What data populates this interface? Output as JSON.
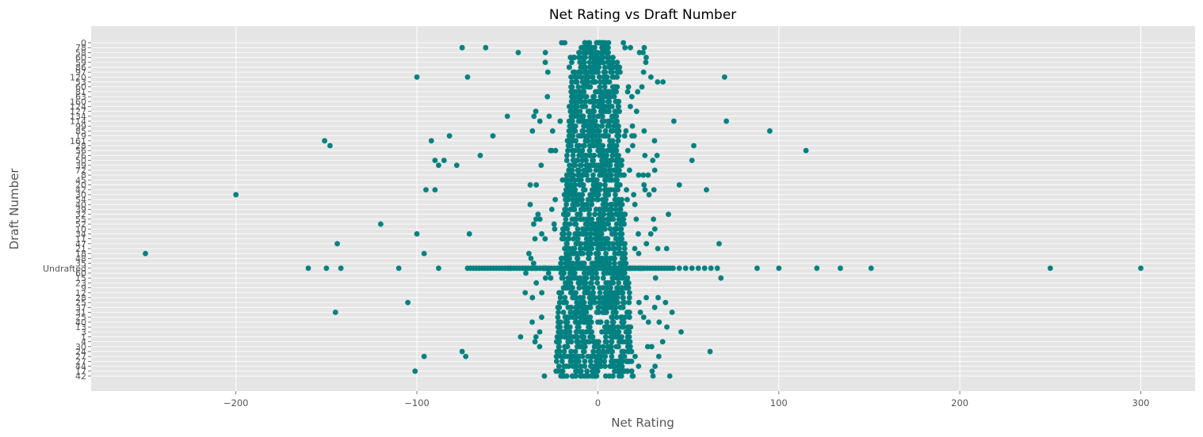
{
  "chart_data": {
    "type": "scatter",
    "title": "Net Rating vs Draft Number",
    "xlabel": "Net Rating",
    "ylabel": "Draft Number",
    "xlim": [
      -280,
      330
    ],
    "x_ticks": [
      -200,
      -100,
      0,
      100,
      200,
      300
    ],
    "x_tick_labels": [
      "−200",
      "−100",
      "0",
      "100",
      "200",
      "300"
    ],
    "grid": true,
    "legend": "none",
    "style": "ggplot",
    "colors": {
      "point": "#008080",
      "plot_bg": "#e5e5e5",
      "grid": "#ffffff",
      "text": "#555555"
    },
    "y_categories": [
      "0",
      "78",
      "58",
      "60",
      "59",
      "86",
      "97",
      "120",
      "53",
      "60",
      "81",
      "63",
      "160",
      "124",
      "127",
      "134",
      "114",
      "99",
      "85",
      "19",
      "161",
      "28",
      "56",
      "76",
      "50",
      "39",
      "72",
      "8",
      "45",
      "20",
      "42",
      "30",
      "54",
      "40",
      "39",
      "32",
      "55",
      "52",
      "10",
      "34",
      "11",
      "47",
      "21",
      "18",
      "48",
      "35",
      "Undrafted",
      "60",
      "15",
      "23",
      "9",
      "12",
      "28",
      "25",
      "37",
      "31",
      "25",
      "40",
      "13",
      "3",
      "1",
      "4",
      "30",
      "24",
      "27",
      "27",
      "44",
      "17",
      "42"
    ],
    "notable_points": [
      {
        "x": 0,
        "y": "0"
      },
      {
        "x": -20,
        "y": "0"
      },
      {
        "x": -75,
        "y": "78"
      },
      {
        "x": -62,
        "y": "78"
      },
      {
        "x": 15,
        "y": "78"
      },
      {
        "x": 18,
        "y": "78"
      },
      {
        "x": -44,
        "y": "58"
      },
      {
        "x": -29,
        "y": "58"
      },
      {
        "x": 23,
        "y": "58"
      },
      {
        "x": -100,
        "y": "120"
      },
      {
        "x": -72,
        "y": "120"
      },
      {
        "x": 70,
        "y": "120"
      },
      {
        "x": 33,
        "y": "53"
      },
      {
        "x": 36,
        "y": "53"
      },
      {
        "x": -50,
        "y": "134"
      },
      {
        "x": 42,
        "y": "114"
      },
      {
        "x": 71,
        "y": "114"
      },
      {
        "x": 95,
        "y": "85"
      },
      {
        "x": -82,
        "y": "19"
      },
      {
        "x": -58,
        "y": "19"
      },
      {
        "x": -151,
        "y": "161"
      },
      {
        "x": -92,
        "y": "161"
      },
      {
        "x": 115,
        "y": "56"
      },
      {
        "x": -65,
        "y": "76"
      },
      {
        "x": -90,
        "y": "50"
      },
      {
        "x": -85,
        "y": "50"
      },
      {
        "x": 52,
        "y": "50"
      },
      {
        "x": 45,
        "y": "20"
      },
      {
        "x": 60,
        "y": "42"
      },
      {
        "x": -88,
        "y": "39"
      },
      {
        "x": -78,
        "y": "39"
      },
      {
        "x": -120,
        "y": "52"
      },
      {
        "x": 39,
        "y": "32"
      },
      {
        "x": -100,
        "y": "34"
      },
      {
        "x": -71,
        "y": "34"
      },
      {
        "x": -144,
        "y": "47"
      },
      {
        "x": 67,
        "y": "47"
      },
      {
        "x": -250,
        "y": "18"
      },
      {
        "x": -96,
        "y": "18"
      },
      {
        "x": 38,
        "y": "21"
      },
      {
        "x": -160,
        "y": "Undrafted"
      },
      {
        "x": -150,
        "y": "Undrafted"
      },
      {
        "x": -142,
        "y": "Undrafted"
      },
      {
        "x": -110,
        "y": "Undrafted"
      },
      {
        "x": -88,
        "y": "Undrafted"
      },
      {
        "x": 88,
        "y": "Undrafted"
      },
      {
        "x": 100,
        "y": "Undrafted"
      },
      {
        "x": 121,
        "y": "Undrafted"
      },
      {
        "x": 134,
        "y": "Undrafted"
      },
      {
        "x": 151,
        "y": "Undrafted"
      },
      {
        "x": 250,
        "y": "Undrafted"
      },
      {
        "x": 300,
        "y": "Undrafted"
      },
      {
        "x": 68,
        "y": "15"
      },
      {
        "x": -148,
        "y": "28"
      },
      {
        "x": -105,
        "y": "25"
      },
      {
        "x": 53,
        "y": "28"
      },
      {
        "x": -145,
        "y": "31"
      },
      {
        "x": 41,
        "y": "31"
      },
      {
        "x": 46,
        "y": "3"
      },
      {
        "x": -200,
        "y": "30"
      },
      {
        "x": -75,
        "y": "24"
      },
      {
        "x": 62,
        "y": "24"
      },
      {
        "x": -96,
        "y": "27"
      },
      {
        "x": -73,
        "y": "27"
      },
      {
        "x": -101,
        "y": "17"
      },
      {
        "x": -95,
        "y": "42"
      },
      {
        "x": -90,
        "y": "42"
      },
      {
        "x": 30,
        "y": "17"
      },
      {
        "x": 31,
        "y": "42"
      }
    ]
  }
}
